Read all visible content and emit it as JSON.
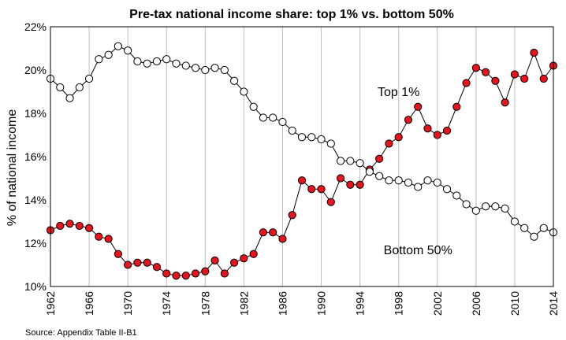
{
  "chart_data": {
    "type": "line",
    "title": "Pre-tax national income share: top 1% vs. bottom 50%",
    "ylabel": "% of national income",
    "xlabel": "",
    "ylim": [
      10,
      22
    ],
    "xlim": [
      1962,
      2014
    ],
    "yticks": [
      "10%",
      "12%",
      "14%",
      "16%",
      "18%",
      "20%",
      "22%"
    ],
    "ytick_values": [
      10,
      12,
      14,
      16,
      18,
      20,
      22
    ],
    "xticks": [
      "1962",
      "1966",
      "1970",
      "1974",
      "1978",
      "1982",
      "1986",
      "1990",
      "1994",
      "1998",
      "2002",
      "2006",
      "2010",
      "2014"
    ],
    "xtick_values": [
      1962,
      1966,
      1970,
      1974,
      1978,
      1982,
      1986,
      1990,
      1994,
      1998,
      2002,
      2006,
      2010,
      2014
    ],
    "grid": "vertical",
    "source": "Source: Appendix Table II-B1",
    "x": [
      1962,
      1963,
      1964,
      1965,
      1966,
      1967,
      1968,
      1969,
      1970,
      1971,
      1972,
      1973,
      1974,
      1975,
      1976,
      1977,
      1978,
      1979,
      1980,
      1981,
      1982,
      1983,
      1984,
      1985,
      1986,
      1987,
      1988,
      1989,
      1990,
      1991,
      1992,
      1993,
      1994,
      1995,
      1996,
      1997,
      1998,
      1999,
      2000,
      2001,
      2002,
      2003,
      2004,
      2005,
      2006,
      2007,
      2008,
      2009,
      2010,
      2011,
      2012,
      2013,
      2014
    ],
    "series": [
      {
        "name": "Top 1%",
        "marker": "filled",
        "color": "#e8141d",
        "values": [
          12.6,
          12.8,
          12.9,
          12.8,
          12.7,
          12.3,
          12.2,
          11.5,
          11.0,
          11.1,
          11.1,
          10.9,
          10.6,
          10.5,
          10.5,
          10.6,
          10.7,
          11.2,
          10.6,
          11.1,
          11.3,
          11.5,
          12.5,
          12.5,
          12.2,
          13.3,
          14.9,
          14.5,
          14.5,
          13.9,
          15.0,
          14.7,
          14.7,
          15.4,
          15.9,
          16.6,
          16.9,
          17.7,
          18.3,
          17.3,
          17.0,
          17.2,
          18.3,
          19.4,
          20.1,
          19.9,
          19.5,
          18.5,
          19.8,
          19.6,
          20.8,
          19.6,
          20.2
        ]
      },
      {
        "name": "Bottom 50%",
        "marker": "hollow",
        "color": "#ffffff",
        "values": [
          19.6,
          19.2,
          18.7,
          19.2,
          19.6,
          20.5,
          20.7,
          21.1,
          20.9,
          20.4,
          20.3,
          20.4,
          20.5,
          20.3,
          20.2,
          20.1,
          20.0,
          20.1,
          20.0,
          19.5,
          19.0,
          18.3,
          17.8,
          17.8,
          17.6,
          17.2,
          16.9,
          16.9,
          16.8,
          16.6,
          15.8,
          15.8,
          15.7,
          15.3,
          15.1,
          14.9,
          14.9,
          14.8,
          14.6,
          14.9,
          14.8,
          14.5,
          14.2,
          13.8,
          13.5,
          13.7,
          13.7,
          13.6,
          13.0,
          12.7,
          12.3,
          12.7,
          12.5
        ]
      }
    ],
    "annotations": [
      {
        "text": "Top 1%",
        "x": 1998,
        "y": 18.8
      },
      {
        "text": "Bottom 50%",
        "x": 2000,
        "y": 11.5
      }
    ]
  }
}
